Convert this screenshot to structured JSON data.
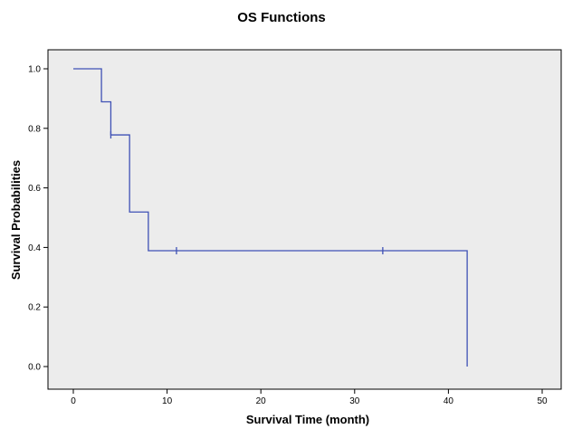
{
  "chart_data": {
    "type": "line",
    "title": "OS Functions",
    "xlabel": "Survival Time (month)",
    "ylabel": "Survival Probabilities",
    "xlim": [
      0,
      50
    ],
    "ylim": [
      0.0,
      1.0
    ],
    "x_ticks": [
      "0",
      "10",
      "20",
      "30",
      "40",
      "50"
    ],
    "y_ticks": [
      "0.0",
      "0.2",
      "0.4",
      "0.6",
      "0.8",
      "1.0"
    ],
    "grid": false,
    "plot_background": "#ececec",
    "line_color": "#3f51b5",
    "step_points": [
      {
        "x": 0,
        "y": 1.0
      },
      {
        "x": 3,
        "y": 0.889
      },
      {
        "x": 4,
        "y": 0.778
      },
      {
        "x": 6,
        "y": 0.519
      },
      {
        "x": 8,
        "y": 0.389
      },
      {
        "x": 42,
        "y": 0.0
      }
    ],
    "censored": [
      {
        "x": 4,
        "y": 0.778
      },
      {
        "x": 11,
        "y": 0.389
      },
      {
        "x": 33,
        "y": 0.389
      }
    ]
  }
}
